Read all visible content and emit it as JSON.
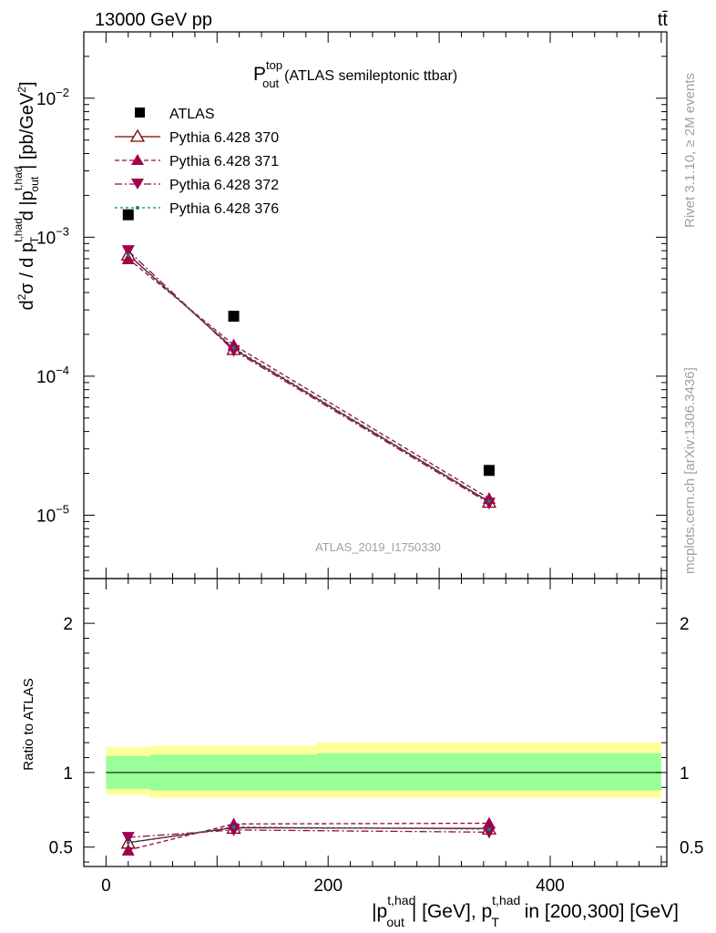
{
  "header": {
    "energy_label": "13000 GeV pp",
    "process_label": "tt̄"
  },
  "side_labels": {
    "rivet": "Rivet 3.1.10, ≥ 2M events",
    "mcplots": "mcplots.cern.ch [arXiv:1306.3436]"
  },
  "analysis_id": "ATLAS_2019_I1750330",
  "chart_data": [
    {
      "type": "line",
      "panel": "main",
      "title_main": "P",
      "title_sup": "top",
      "title_sub": "out",
      "title_rest": "(ATLAS semileptonic ttbar)",
      "ylabel": "d²σ / d p_T^{t,had} d |p_out^{t,had}| [pb/GeV²]",
      "yscale": "log",
      "ylim": [
        3.5e-06,
        0.03
      ],
      "xlim": [
        -20,
        505
      ],
      "yticks": [
        {
          "value": 1e-05,
          "base": "10",
          "exp": "−5"
        },
        {
          "value": 0.0001,
          "base": "10",
          "exp": "−4"
        },
        {
          "value": 0.001,
          "base": "10",
          "exp": "−3"
        },
        {
          "value": 0.01,
          "base": "10",
          "exp": "−2"
        }
      ],
      "legend_position": "top-left",
      "data_series": {
        "name": "ATLAS",
        "color": "#000000",
        "marker": "square",
        "x": [
          20,
          115,
          345
        ],
        "y": [
          0.00145,
          0.00027,
          2.1e-05
        ]
      },
      "series": [
        {
          "name": "Pythia 6.428 370",
          "color": "#800000",
          "dash": "",
          "marker": "triangle-up-open",
          "x": [
            20,
            115,
            345
          ],
          "y": [
            0.00075,
            0.000157,
            1.25e-05
          ]
        },
        {
          "name": "Pythia 6.428 371",
          "color": "#a0004f",
          "dash": "5,3",
          "marker": "triangle-up",
          "x": [
            20,
            115,
            345
          ],
          "y": [
            0.0007,
            0.000168,
            1.32e-05
          ]
        },
        {
          "name": "Pythia 6.428 372",
          "color": "#a0004f",
          "dash": "8,3,2,3",
          "marker": "triangle-down",
          "x": [
            20,
            115,
            345
          ],
          "y": [
            0.0008,
            0.000153,
            1.22e-05
          ]
        },
        {
          "name": "Pythia 6.428 376",
          "color": "#008b70",
          "dash": "3,3",
          "marker": "dot",
          "x": [
            20,
            115,
            345
          ],
          "y": [
            0.00074,
            0.00016,
            1.26e-05
          ]
        }
      ]
    },
    {
      "type": "line",
      "panel": "ratio",
      "ylabel": "Ratio to ATLAS",
      "ylim": [
        0.37,
        2.3
      ],
      "xlim": [
        -20,
        505
      ],
      "yticks": [
        0.5,
        1,
        2
      ],
      "xticks": [
        0,
        200,
        400
      ],
      "xlabel": "|p_out^{t,had}| [GeV], p_T^{t,had} in [200,300] [GeV]",
      "bands": [
        {
          "x0": 0,
          "x1": 40,
          "inner": [
            0.89,
            1.11
          ],
          "outer": [
            0.85,
            1.17
          ]
        },
        {
          "x0": 40,
          "x1": 190,
          "inner": [
            0.88,
            1.12
          ],
          "outer": [
            0.83,
            1.18
          ]
        },
        {
          "x0": 190,
          "x1": 500,
          "inner": [
            0.88,
            1.13
          ],
          "outer": [
            0.83,
            1.2
          ]
        }
      ],
      "series": [
        {
          "name": "Pythia 6.428 370",
          "x": [
            20,
            115,
            345
          ],
          "y": [
            0.53,
            0.63,
            0.625
          ]
        },
        {
          "name": "Pythia 6.428 371",
          "x": [
            20,
            115,
            345
          ],
          "y": [
            0.48,
            0.655,
            0.66
          ]
        },
        {
          "name": "Pythia 6.428 372",
          "x": [
            20,
            115,
            345
          ],
          "y": [
            0.565,
            0.615,
            0.6
          ]
        },
        {
          "name": "Pythia 6.428 376",
          "x": [
            20,
            115,
            345
          ],
          "y": [
            0.53,
            0.635,
            0.62
          ]
        }
      ]
    }
  ]
}
